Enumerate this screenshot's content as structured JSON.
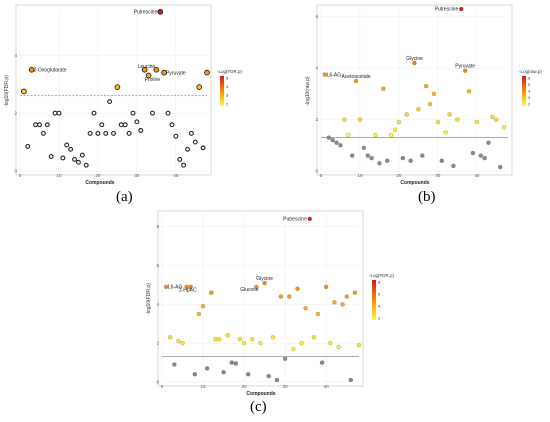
{
  "chart_data": [
    {
      "panel": "(a)",
      "type": "scatter",
      "xlabel": "Compounds",
      "ylabel": "-log10(FDR.p)",
      "legend_title": "-Log(FDR.p)",
      "legend_ticks": [
        "5",
        "4",
        "3",
        "2"
      ],
      "legend_range": [
        2,
        5.3
      ],
      "xlim": [
        0,
        48
      ],
      "ylim": [
        0,
        5.6
      ],
      "xticks": [
        0,
        10,
        20,
        30,
        40
      ],
      "yticks": [
        0,
        2,
        4
      ],
      "threshold": 2.6,
      "style": "outlined",
      "points": [
        {
          "x": 1,
          "y": 2.75,
          "sig": true
        },
        {
          "x": 2,
          "y": 0.85,
          "sig": false
        },
        {
          "x": 3,
          "y": 3.5,
          "sig": true,
          "label": "2-Oxoglutarate"
        },
        {
          "x": 4,
          "y": 1.6,
          "sig": false
        },
        {
          "x": 5,
          "y": 1.6,
          "sig": false
        },
        {
          "x": 6,
          "y": 1.3,
          "sig": false
        },
        {
          "x": 7,
          "y": 1.6,
          "sig": false
        },
        {
          "x": 8,
          "y": 0.5,
          "sig": false
        },
        {
          "x": 9,
          "y": 2.0,
          "sig": false
        },
        {
          "x": 10,
          "y": 2.0,
          "sig": false
        },
        {
          "x": 11,
          "y": 0.45,
          "sig": false
        },
        {
          "x": 12,
          "y": 0.9,
          "sig": false
        },
        {
          "x": 13,
          "y": 0.75,
          "sig": false
        },
        {
          "x": 14,
          "y": 0.4,
          "sig": false
        },
        {
          "x": 15,
          "y": 0.3,
          "sig": false
        },
        {
          "x": 16,
          "y": 0.55,
          "sig": false
        },
        {
          "x": 17,
          "y": 0.2,
          "sig": false
        },
        {
          "x": 18,
          "y": 1.3,
          "sig": false
        },
        {
          "x": 19,
          "y": 2.0,
          "sig": false
        },
        {
          "x": 20,
          "y": 1.3,
          "sig": false
        },
        {
          "x": 21,
          "y": 1.6,
          "sig": false
        },
        {
          "x": 22,
          "y": 1.3,
          "sig": false
        },
        {
          "x": 23,
          "y": 2.4,
          "sig": false
        },
        {
          "x": 24,
          "y": 1.3,
          "sig": false
        },
        {
          "x": 25,
          "y": 2.9,
          "sig": true
        },
        {
          "x": 26,
          "y": 1.6,
          "sig": false
        },
        {
          "x": 27,
          "y": 1.6,
          "sig": false
        },
        {
          "x": 28,
          "y": 1.3,
          "sig": false
        },
        {
          "x": 29,
          "y": 2.0,
          "sig": false
        },
        {
          "x": 30,
          "y": 1.7,
          "sig": false
        },
        {
          "x": 31,
          "y": 1.4,
          "sig": false
        },
        {
          "x": 32,
          "y": 3.5,
          "sig": true,
          "label": "Leucine"
        },
        {
          "x": 33,
          "y": 3.3,
          "sig": true,
          "label": "Proline"
        },
        {
          "x": 34,
          "y": 2.0,
          "sig": false
        },
        {
          "x": 35,
          "y": 3.5,
          "sig": true
        },
        {
          "x": 36,
          "y": 5.5,
          "sig": true,
          "label": "Putrescine"
        },
        {
          "x": 37,
          "y": 3.4,
          "sig": true,
          "label": "Pyruvate"
        },
        {
          "x": 38,
          "y": 2.0,
          "sig": false
        },
        {
          "x": 39,
          "y": 1.6,
          "sig": false
        },
        {
          "x": 40,
          "y": 1.2,
          "sig": false
        },
        {
          "x": 41,
          "y": 0.4,
          "sig": false
        },
        {
          "x": 42,
          "y": 0.2,
          "sig": false
        },
        {
          "x": 43,
          "y": 0.75,
          "sig": false
        },
        {
          "x": 44,
          "y": 1.3,
          "sig": false
        },
        {
          "x": 45,
          "y": 1.0,
          "sig": false
        },
        {
          "x": 46,
          "y": 2.9,
          "sig": true
        },
        {
          "x": 47,
          "y": 0.8,
          "sig": false
        },
        {
          "x": 48,
          "y": 3.4,
          "sig": true
        }
      ]
    },
    {
      "panel": "(b)",
      "type": "scatter",
      "xlabel": "Compounds",
      "ylabel": "-log10(raw.p)",
      "legend_title": "-Log(raw.p)",
      "legend_ticks": [
        "6",
        "5",
        "4",
        "3",
        "2"
      ],
      "legend_range": [
        1.3,
        6.3
      ],
      "xlim": [
        0,
        48
      ],
      "ylim": [
        0,
        6.3
      ],
      "xticks": [
        0,
        10,
        20,
        30,
        40
      ],
      "yticks": [
        0,
        2,
        4,
        6
      ],
      "threshold": 1.3,
      "style": "filled",
      "points": [
        {
          "x": 1,
          "y": 3.75,
          "sig": true,
          "label": "L6-AG"
        },
        {
          "x": 2,
          "y": 1.3,
          "sig": false
        },
        {
          "x": 3,
          "y": 1.2,
          "sig": false
        },
        {
          "x": 4,
          "y": 1.1,
          "sig": false
        },
        {
          "x": 5,
          "y": 1.0,
          "sig": false
        },
        {
          "x": 6,
          "y": 2.0,
          "sig": true
        },
        {
          "x": 7,
          "y": 1.4,
          "sig": true
        },
        {
          "x": 8,
          "y": 0.6,
          "sig": false
        },
        {
          "x": 9,
          "y": 3.5,
          "sig": true,
          "label": "Acetoacetate"
        },
        {
          "x": 10,
          "y": 2.0,
          "sig": true
        },
        {
          "x": 11,
          "y": 0.9,
          "sig": false
        },
        {
          "x": 12,
          "y": 0.6,
          "sig": false
        },
        {
          "x": 13,
          "y": 0.5,
          "sig": false
        },
        {
          "x": 14,
          "y": 1.4,
          "sig": true
        },
        {
          "x": 15,
          "y": 0.3,
          "sig": false
        },
        {
          "x": 16,
          "y": 3.2,
          "sig": true
        },
        {
          "x": 17,
          "y": 0.4,
          "sig": false
        },
        {
          "x": 18,
          "y": 1.4,
          "sig": true
        },
        {
          "x": 19,
          "y": 1.6,
          "sig": true
        },
        {
          "x": 20,
          "y": 1.9,
          "sig": true
        },
        {
          "x": 21,
          "y": 0.5,
          "sig": false
        },
        {
          "x": 22,
          "y": 2.2,
          "sig": true
        },
        {
          "x": 23,
          "y": 0.4,
          "sig": false
        },
        {
          "x": 24,
          "y": 4.2,
          "sig": true,
          "label": "Glycine"
        },
        {
          "x": 25,
          "y": 2.4,
          "sig": true
        },
        {
          "x": 26,
          "y": 0.6,
          "sig": false
        },
        {
          "x": 27,
          "y": 3.3,
          "sig": true
        },
        {
          "x": 28,
          "y": 2.6,
          "sig": true
        },
        {
          "x": 29,
          "y": 3.0,
          "sig": true
        },
        {
          "x": 30,
          "y": 1.9,
          "sig": true
        },
        {
          "x": 31,
          "y": 0.4,
          "sig": false
        },
        {
          "x": 32,
          "y": 1.5,
          "sig": true
        },
        {
          "x": 33,
          "y": 2.2,
          "sig": true
        },
        {
          "x": 34,
          "y": 0.2,
          "sig": false
        },
        {
          "x": 35,
          "y": 2.0,
          "sig": true
        },
        {
          "x": 36,
          "y": 6.3,
          "sig": true,
          "label": "Putrescine"
        },
        {
          "x": 37,
          "y": 3.9,
          "sig": true,
          "label": "Pyruvate"
        },
        {
          "x": 38,
          "y": 3.1,
          "sig": true
        },
        {
          "x": 39,
          "y": 0.7,
          "sig": false
        },
        {
          "x": 40,
          "y": 1.9,
          "sig": true
        },
        {
          "x": 41,
          "y": 0.6,
          "sig": false
        },
        {
          "x": 42,
          "y": 0.5,
          "sig": false
        },
        {
          "x": 43,
          "y": 1.1,
          "sig": false
        },
        {
          "x": 44,
          "y": 2.1,
          "sig": true
        },
        {
          "x": 45,
          "y": 2.0,
          "sig": true
        },
        {
          "x": 46,
          "y": 0.15,
          "sig": false
        },
        {
          "x": 47,
          "y": 1.7,
          "sig": true
        }
      ]
    },
    {
      "panel": "(c)",
      "type": "scatter",
      "xlabel": "Compounds",
      "ylabel": "-log10(FDR.p)",
      "legend_title": "-Log(FDR.p)",
      "legend_ticks": [
        "8",
        "6",
        "4",
        "2"
      ],
      "legend_range": [
        1.3,
        8.5
      ],
      "xlim": [
        0,
        48
      ],
      "ylim": [
        0,
        8.6
      ],
      "xticks": [
        0,
        10,
        20,
        30,
        40
      ],
      "yticks": [
        0,
        2,
        4,
        6,
        8
      ],
      "threshold": 1.3,
      "style": "filled",
      "points": [
        {
          "x": 1,
          "y": 4.9,
          "sig": true,
          "label": "L6-AG"
        },
        {
          "x": 2,
          "y": 2.3,
          "sig": true
        },
        {
          "x": 3,
          "y": 0.9,
          "sig": false
        },
        {
          "x": 4,
          "y": 2.1,
          "sig": true
        },
        {
          "x": 5,
          "y": 2.0,
          "sig": true
        },
        {
          "x": 6,
          "y": 4.9,
          "sig": true
        },
        {
          "x": 7,
          "y": 4.9,
          "sig": true,
          "label": "2-HpAC"
        },
        {
          "x": 8,
          "y": 0.4,
          "sig": false
        },
        {
          "x": 9,
          "y": 3.5,
          "sig": true
        },
        {
          "x": 10,
          "y": 3.9,
          "sig": true
        },
        {
          "x": 11,
          "y": 0.7,
          "sig": false
        },
        {
          "x": 12,
          "y": 4.6,
          "sig": true
        },
        {
          "x": 13,
          "y": 2.2,
          "sig": true
        },
        {
          "x": 14,
          "y": 2.2,
          "sig": true
        },
        {
          "x": 15,
          "y": 0.5,
          "sig": false
        },
        {
          "x": 16,
          "y": 2.4,
          "sig": true
        },
        {
          "x": 17,
          "y": 1.0,
          "sig": false
        },
        {
          "x": 18,
          "y": 0.95,
          "sig": false
        },
        {
          "x": 19,
          "y": 2.2,
          "sig": true
        },
        {
          "x": 20,
          "y": 2.0,
          "sig": true
        },
        {
          "x": 21,
          "y": 0.4,
          "sig": false
        },
        {
          "x": 22,
          "y": 2.2,
          "sig": true
        },
        {
          "x": 23,
          "y": 4.9,
          "sig": true,
          "label": "Glucose"
        },
        {
          "x": 24,
          "y": 2.0,
          "sig": true
        },
        {
          "x": 25,
          "y": 5.1,
          "sig": true,
          "label": "Glycine"
        },
        {
          "x": 26,
          "y": 0.3,
          "sig": false
        },
        {
          "x": 27,
          "y": 2.3,
          "sig": true
        },
        {
          "x": 28,
          "y": 0.1,
          "sig": false
        },
        {
          "x": 29,
          "y": 4.4,
          "sig": true
        },
        {
          "x": 30,
          "y": 1.2,
          "sig": false
        },
        {
          "x": 31,
          "y": 4.4,
          "sig": true
        },
        {
          "x": 32,
          "y": 1.7,
          "sig": true
        },
        {
          "x": 33,
          "y": 4.8,
          "sig": true
        },
        {
          "x": 34,
          "y": 2.0,
          "sig": true
        },
        {
          "x": 35,
          "y": 3.8,
          "sig": true
        },
        {
          "x": 36,
          "y": 8.4,
          "sig": true,
          "label": "Putrescine"
        },
        {
          "x": 37,
          "y": 2.3,
          "sig": true
        },
        {
          "x": 38,
          "y": 3.5,
          "sig": true
        },
        {
          "x": 39,
          "y": 1.0,
          "sig": false
        },
        {
          "x": 40,
          "y": 4.9,
          "sig": true
        },
        {
          "x": 41,
          "y": 2.0,
          "sig": true
        },
        {
          "x": 42,
          "y": 4.1,
          "sig": true
        },
        {
          "x": 43,
          "y": 1.8,
          "sig": true
        },
        {
          "x": 44,
          "y": 4.0,
          "sig": true
        },
        {
          "x": 45,
          "y": 4.4,
          "sig": true
        },
        {
          "x": 46,
          "y": 0.1,
          "sig": false
        },
        {
          "x": 47,
          "y": 4.6,
          "sig": true
        },
        {
          "x": 48,
          "y": 1.9,
          "sig": true
        }
      ]
    }
  ],
  "colors": {
    "low": "#ffff3b",
    "mid": "#ff8c00",
    "high": "#d7191c",
    "nonsig_fill": "#888888",
    "outline": "#222222",
    "threshold_line": "#555555"
  }
}
